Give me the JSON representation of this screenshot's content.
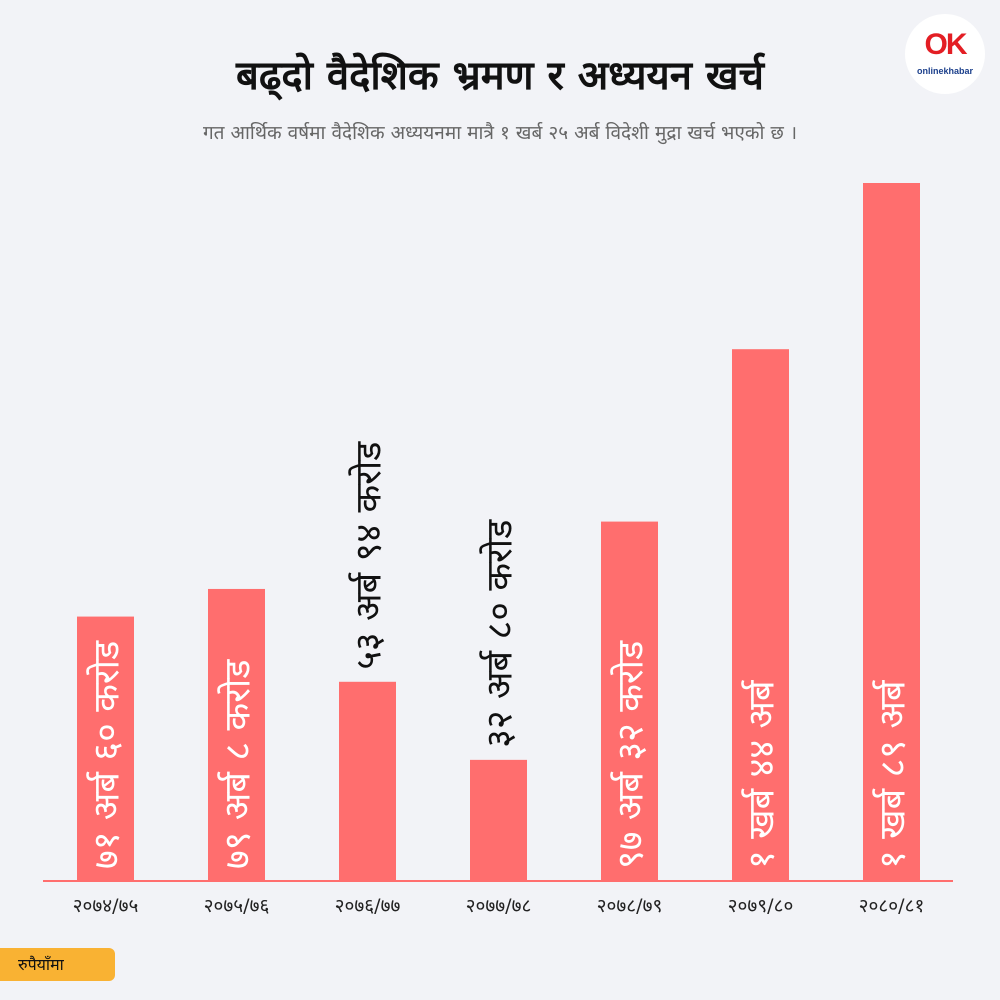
{
  "header": {
    "title": "बढ्दो  वैदेशिक भ्रमण र अध्ययन खर्च",
    "subtitle": "गत आर्थिक वर्षमा वैदेशिक अध्ययनमा मात्रै १ खर्ब २५ अर्ब विदेशी मुद्रा खर्च भएको छ ।"
  },
  "logo": {
    "mark": "OK",
    "text": "onlinekhabar"
  },
  "unit_label": "रुपैयाँमा",
  "colors": {
    "bar": "#ff6e6e",
    "background": "#f2f3f7",
    "baseline": "#ff6e6e",
    "unit_badge": "#f9b233"
  },
  "chart_data": {
    "type": "bar",
    "categories": [
      "२०७४/७५",
      "२०७५/७६",
      "२०७६/७७",
      "२०७७/७८",
      "२०७८/७९",
      "२०७९/८०",
      "२०८०/८१"
    ],
    "values": [
      71.6,
      79.08,
      53.94,
      32.8,
      97.32,
      144,
      189
    ],
    "value_labels": [
      "७१ अर्ब ६० करोड",
      "७९ अर्ब ८ करोड",
      "५३ अर्ब ९४ करोड",
      "३२ अर्ब ८० करोड",
      "९७ अर्ब ३२ करोड",
      "१ खर्ब ४४ अर्ब",
      "१ खर्ब ८९ अर्ब"
    ],
    "label_inside": [
      true,
      true,
      false,
      false,
      true,
      true,
      true
    ],
    "unit": "अर्ब रुपैयाँ",
    "ylim": [
      0,
      200
    ],
    "grid": false
  }
}
